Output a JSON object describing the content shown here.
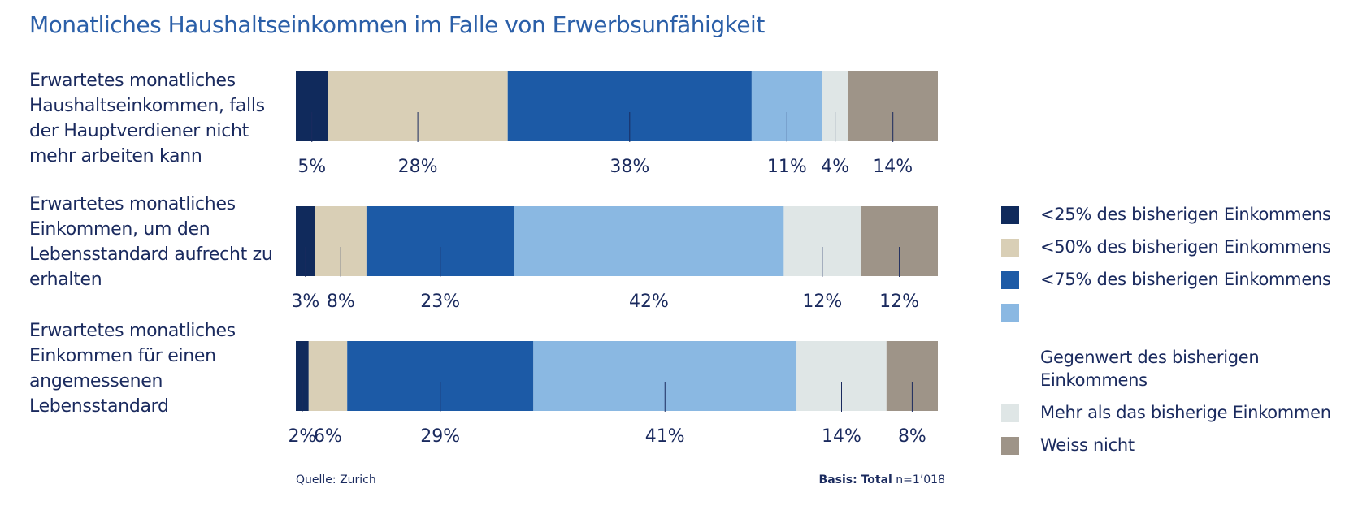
{
  "title": "Monatliches Haushaltseinkommen im Falle von Erwerbsunfähigkeit",
  "source": "Quelle: Zurich",
  "basis_bold": "Basis: Total",
  "basis_rest": " n=1’018",
  "colors": {
    "lt25": "#102a5c",
    "lt50": "#d9cfb6",
    "lt75": "#1c5aa6",
    "equal": "#8ab8e2",
    "more": "#dfe6e6",
    "unknown": "#9e9488",
    "text": "#1a2a5e"
  },
  "chart_data": {
    "type": "bar",
    "orientation": "horizontal-stacked-100",
    "title": "Monatliches Haushaltseinkommen im Falle von Erwerbsunfähigkeit",
    "categories": [
      "Erwartetes monatliches Haushaltseinkommen, falls der Hauptverdiener nicht mehr arbeiten kann",
      "Erwartetes monatliches Einkommen, um den Lebensstandard aufrecht zu erhalten",
      "Erwartetes monatliches Einkommen für einen angemessenen Lebensstandard"
    ],
    "category_lines": [
      "Erwartetes monatliches\nHaushaltseinkommen, falls\nder Hauptverdiener nicht\nmehr arbeiten kann",
      "Erwartetes monatliches\nEinkommen, um den\nLebensstandard aufrecht zu\nerhalten",
      "Erwartetes monatliches\nEinkommen für einen\nangemessenen\nLebensstandard"
    ],
    "series": [
      {
        "name": "<25% des bisherigen Einkommens",
        "color": "#102a5c",
        "values": [
          5,
          3,
          2
        ]
      },
      {
        "name": "<50% des bisherigen Einkommens",
        "color": "#d9cfb6",
        "values": [
          28,
          8,
          6
        ]
      },
      {
        "name": "<75% des bisherigen Einkommens",
        "color": "#1c5aa6",
        "values": [
          38,
          23,
          29
        ]
      },
      {
        "name": "Gegenwert des bisherigen Einkommens",
        "color": "#8ab8e2",
        "values": [
          11,
          42,
          41
        ]
      },
      {
        "name": "Mehr als das bisherige Einkommen",
        "color": "#dfe6e6",
        "values": [
          4,
          12,
          14
        ]
      },
      {
        "name": "Weiss nicht",
        "color": "#9e9488",
        "values": [
          14,
          12,
          8
        ]
      }
    ],
    "legend_lines": [
      "<25% des bisherigen Einkommens",
      "<50% des bisherigen Einkommens",
      "<75% des bisherigen Einkommens",
      "Gegenwert des bisherigen\nEinkommens",
      "Mehr als das bisherige Einkommen",
      "Weiss nicht"
    ],
    "value_suffix": "%",
    "legend_position": "right",
    "grid": false
  }
}
